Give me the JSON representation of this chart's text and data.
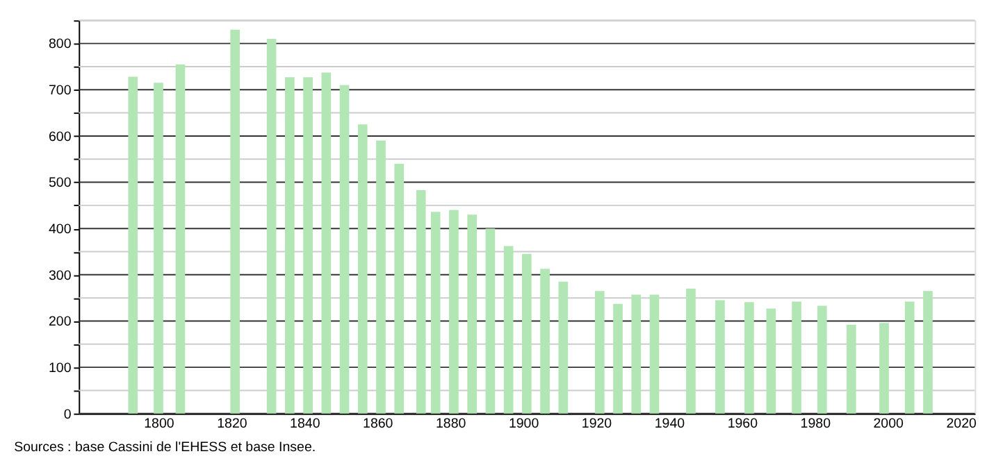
{
  "chart_data": {
    "type": "bar",
    "x": [
      1793,
      1800,
      1806,
      1821,
      1831,
      1836,
      1841,
      1846,
      1851,
      1856,
      1861,
      1866,
      1872,
      1876,
      1881,
      1886,
      1891,
      1896,
      1901,
      1906,
      1911,
      1921,
      1926,
      1931,
      1936,
      1946,
      1954,
      1962,
      1968,
      1975,
      1982,
      1990,
      1999,
      2006,
      2011
    ],
    "series": [
      {
        "color": "#b3e6b5",
        "values": [
          728,
          715,
          755,
          830,
          810,
          727,
          727,
          737,
          710,
          625,
          590,
          540,
          483,
          436,
          440,
          430,
          400,
          362,
          345,
          313,
          285,
          265,
          237,
          257,
          257,
          270,
          245,
          241,
          227,
          242,
          233,
          192,
          196,
          242,
          265
        ]
      }
    ],
    "xlim": [
      1780,
      2022
    ],
    "xticks": [
      1800,
      1820,
      1840,
      1860,
      1880,
      1900,
      1920,
      1940,
      1960,
      1980,
      2000,
      2020
    ],
    "ylim": [
      0,
      850
    ],
    "yticks": [
      0,
      {
        "value": 50,
        "label": null
      },
      100,
      {
        "value": 150,
        "label": null
      },
      200,
      {
        "value": 250,
        "label": null
      },
      300,
      {
        "value": 350,
        "label": null
      },
      400,
      {
        "value": 450,
        "label": null
      },
      500,
      {
        "value": 550,
        "label": null
      },
      600,
      {
        "value": 650,
        "label": null
      },
      700,
      {
        "value": 750,
        "label": null
      },
      800,
      {
        "value": 850,
        "label": null
      }
    ],
    "grid": "y",
    "annotations": [
      "Sources : base Cassini de l'EHESS et base Insee."
    ]
  }
}
